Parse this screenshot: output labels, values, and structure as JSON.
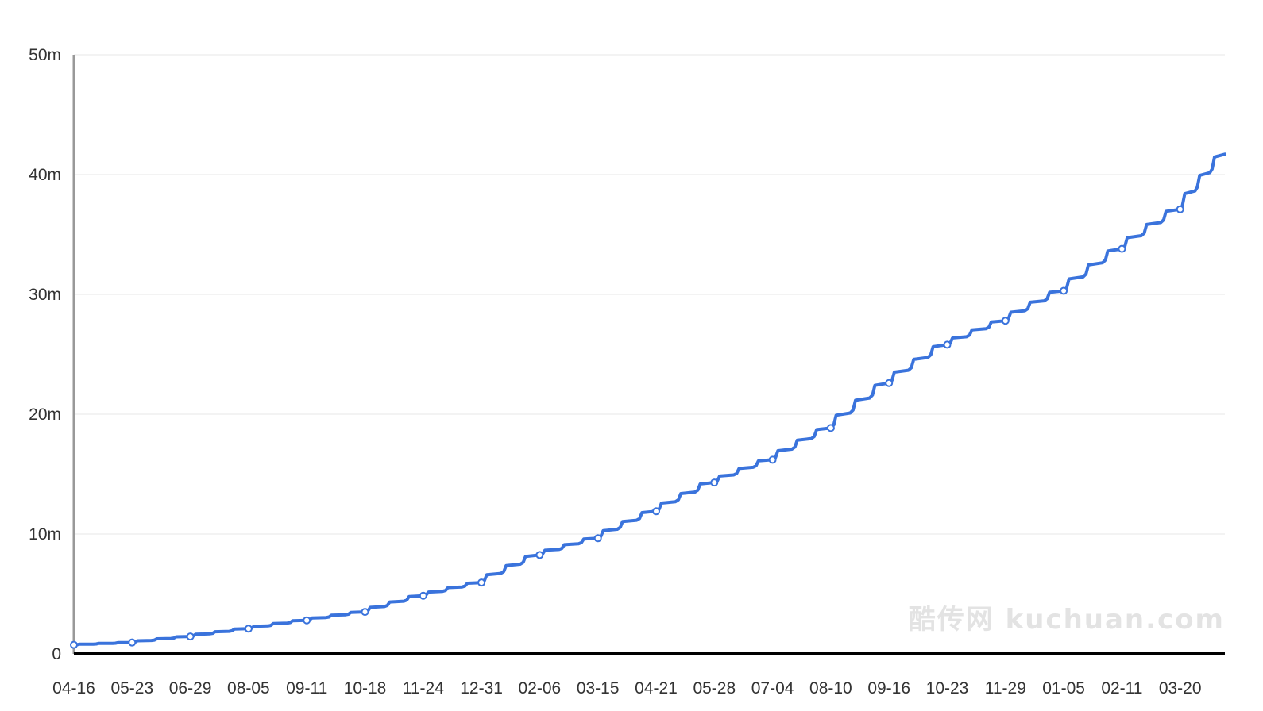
{
  "chart_data": {
    "type": "line",
    "title": "",
    "xlabel": "",
    "ylabel": "",
    "y_tick_labels": [
      "0",
      "10m",
      "20m",
      "30m",
      "40m",
      "50m"
    ],
    "y_tick_values": [
      0,
      10000000,
      20000000,
      30000000,
      40000000,
      50000000
    ],
    "ylim": [
      0,
      50000000
    ],
    "x_tick_labels": [
      "04-16",
      "05-23",
      "06-29",
      "08-05",
      "09-11",
      "10-18",
      "11-24",
      "12-31",
      "02-06",
      "03-15",
      "04-21",
      "05-28",
      "07-04",
      "08-10",
      "09-16",
      "10-23",
      "11-29",
      "01-05",
      "02-11",
      "03-20"
    ],
    "grid": true,
    "legend": "none",
    "series": [
      {
        "color": "#3a73dc",
        "points": [
          {
            "x": "04-16",
            "y": 750000
          },
          {
            "x": "05-23",
            "y": 950000
          },
          {
            "x": "06-29",
            "y": 1450000
          },
          {
            "x": "08-05",
            "y": 2100000
          },
          {
            "x": "09-11",
            "y": 2800000
          },
          {
            "x": "10-18",
            "y": 3500000
          },
          {
            "x": "11-24",
            "y": 4850000
          },
          {
            "x": "12-31",
            "y": 5950000
          },
          {
            "x": "02-06",
            "y": 8250000
          },
          {
            "x": "03-15",
            "y": 9650000
          },
          {
            "x": "04-21",
            "y": 11900000
          },
          {
            "x": "05-28",
            "y": 14300000
          },
          {
            "x": "07-04",
            "y": 16200000
          },
          {
            "x": "08-10",
            "y": 18850000
          },
          {
            "x": "09-16",
            "y": 22600000
          },
          {
            "x": "10-23",
            "y": 25800000
          },
          {
            "x": "11-29",
            "y": 27800000
          },
          {
            "x": "01-05",
            "y": 30300000
          },
          {
            "x": "02-11",
            "y": 33800000
          },
          {
            "x": "03-20",
            "y": 37100000
          }
        ],
        "end_value": 41700000
      }
    ],
    "watermark": "酷传网 kuchuan.com"
  }
}
